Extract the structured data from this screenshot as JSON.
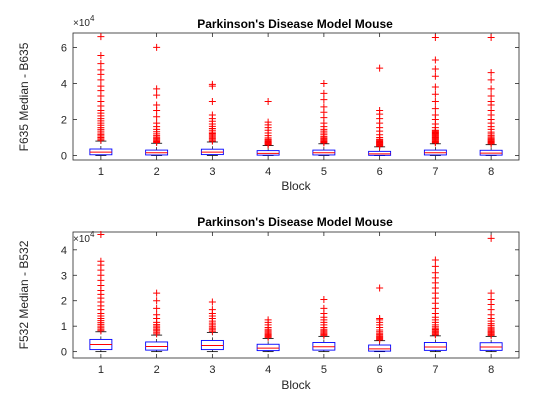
{
  "colors": {
    "box": "#0000ff",
    "median": "#ff0000",
    "outlier": "#ff0000",
    "whisker": "#000000",
    "axis": "#262626"
  },
  "chart_data": [
    {
      "type": "box",
      "title": "Parkinson's Disease Model Mouse",
      "xlabel": "Block",
      "ylabel": "F635 Median - B635",
      "exponent_label": "×10",
      "exponent_power": "4",
      "scale": 10000,
      "ylim": [
        -2500,
        68000
      ],
      "yticks": [
        0,
        20000,
        40000,
        60000
      ],
      "yticklabels": [
        "0",
        "2",
        "4",
        "6"
      ],
      "categories": [
        "1",
        "2",
        "3",
        "4",
        "5",
        "6",
        "7",
        "8"
      ],
      "boxes": [
        {
          "q1": 400,
          "median": 1900,
          "q3": 3600,
          "whisker_low": 0,
          "whisker_high": 8000,
          "outliers": [
            8500,
            9200,
            10000,
            10800,
            11600,
            12500,
            13500,
            14500,
            15500,
            16800,
            18000,
            19200,
            20500,
            22000,
            23500,
            25000,
            27500,
            30000,
            33000,
            36000,
            38500,
            42000,
            45000,
            47500,
            51000,
            55500,
            66000
          ]
        },
        {
          "q1": 300,
          "median": 1500,
          "q3": 3000,
          "whisker_low": 0,
          "whisker_high": 6800,
          "outliers": [
            7200,
            7800,
            8400,
            9000,
            9600,
            10200,
            11000,
            12000,
            13200,
            14500,
            16000,
            18000,
            21500,
            25000,
            28000,
            33500,
            37000,
            60000
          ]
        },
        {
          "q1": 500,
          "median": 1900,
          "q3": 3500,
          "whisker_low": 0,
          "whisker_high": 7500,
          "outliers": [
            8000,
            8700,
            9400,
            10100,
            10800,
            11500,
            12200,
            13000,
            14000,
            15000,
            16200,
            17500,
            19000,
            20500,
            22500,
            30000,
            38500,
            39500
          ]
        },
        {
          "q1": 200,
          "median": 1200,
          "q3": 2700,
          "whisker_low": 0,
          "whisker_high": 5500,
          "outliers": [
            5900,
            6300,
            6700,
            7100,
            7500,
            8000,
            8500,
            9000,
            9800,
            11000,
            12500,
            14000,
            15500,
            17000,
            18500,
            30000
          ]
        },
        {
          "q1": 300,
          "median": 1500,
          "q3": 3000,
          "whisker_low": 0,
          "whisker_high": 6500,
          "outliers": [
            7000,
            7500,
            8000,
            8600,
            9200,
            9800,
            10500,
            11500,
            12500,
            13500,
            14500,
            16000,
            18000,
            21000,
            24000,
            27000,
            31000,
            34500,
            40000
          ]
        },
        {
          "q1": 100,
          "median": 900,
          "q3": 2300,
          "whisker_low": 0,
          "whisker_high": 4800,
          "outliers": [
            5100,
            5500,
            5900,
            6300,
            6700,
            7100,
            7500,
            8000,
            8500,
            9000,
            10000,
            11500,
            13500,
            15500,
            18000,
            20500,
            23000,
            25000,
            48500
          ]
        },
        {
          "q1": 300,
          "median": 1500,
          "q3": 3000,
          "whisker_low": 0,
          "whisker_high": 6500,
          "outliers": [
            7000,
            7500,
            8000,
            8500,
            9000,
            9500,
            10000,
            10500,
            11000,
            11500,
            12000,
            12500,
            13000,
            13500,
            14000,
            15500,
            17500,
            20000,
            22500,
            26000,
            30000,
            34000,
            38000,
            44000,
            48000,
            53000,
            65500
          ]
        },
        {
          "q1": 200,
          "median": 1300,
          "q3": 2900,
          "whisker_low": 0,
          "whisker_high": 6000,
          "outliers": [
            6500,
            7000,
            7500,
            8000,
            8500,
            9000,
            9600,
            10300,
            11000,
            12000,
            13000,
            14500,
            16000,
            18000,
            20000,
            22500,
            25000,
            28000,
            30000,
            33000,
            37000,
            42000,
            46000,
            65500
          ]
        }
      ]
    },
    {
      "type": "box",
      "title": "Parkinson's Disease Model Mouse",
      "xlabel": "Block",
      "ylabel": "F532 Median - B532",
      "exponent_label": "×10",
      "exponent_power": "4",
      "scale": 10000,
      "ylim": [
        -2500,
        47000
      ],
      "yticks": [
        0,
        10000,
        20000,
        30000,
        40000
      ],
      "yticklabels": [
        "0",
        "1",
        "2",
        "3",
        "4"
      ],
      "categories": [
        "1",
        "2",
        "3",
        "4",
        "5",
        "6",
        "7",
        "8"
      ],
      "boxes": [
        {
          "q1": 800,
          "median": 2800,
          "q3": 4800,
          "whisker_low": 0,
          "whisker_high": 7800,
          "outliers": [
            8200,
            8800,
            9400,
            10000,
            10700,
            11400,
            12200,
            13000,
            14000,
            15000,
            16500,
            18000,
            19500,
            21000,
            22500,
            24000,
            26000,
            28000,
            30000,
            32000,
            34000,
            35500,
            46000
          ]
        },
        {
          "q1": 600,
          "median": 2000,
          "q3": 3800,
          "whisker_low": 0,
          "whisker_high": 6500,
          "outliers": [
            7000,
            7600,
            8200,
            8800,
            9400,
            10000,
            10600,
            11500,
            13000,
            14500,
            17000,
            20000,
            23000
          ]
        },
        {
          "q1": 800,
          "median": 2400,
          "q3": 4400,
          "whisker_low": 0,
          "whisker_high": 7500,
          "outliers": [
            8000,
            8600,
            9200,
            9800,
            10500,
            11200,
            12000,
            13000,
            14000,
            15000,
            16500,
            19500
          ]
        },
        {
          "q1": 400,
          "median": 1400,
          "q3": 2900,
          "whisker_low": 0,
          "whisker_high": 5200,
          "outliers": [
            5600,
            6000,
            6400,
            6800,
            7200,
            7700,
            8200,
            8800,
            9500,
            10500,
            11500,
            12500
          ]
        },
        {
          "q1": 600,
          "median": 1900,
          "q3": 3600,
          "whisker_low": 0,
          "whisker_high": 6000,
          "outliers": [
            6400,
            6800,
            7200,
            7700,
            8200,
            8800,
            9500,
            10500,
            11500,
            12500,
            13500,
            15000,
            17000,
            20500
          ]
        },
        {
          "q1": 200,
          "median": 1100,
          "q3": 2600,
          "whisker_low": 0,
          "whisker_high": 4300,
          "outliers": [
            4600,
            5000,
            5400,
            5800,
            6200,
            6700,
            7200,
            7800,
            8500,
            9500,
            10500,
            11500,
            12500,
            13000,
            25000
          ]
        },
        {
          "q1": 500,
          "median": 1800,
          "q3": 3600,
          "whisker_low": 0,
          "whisker_high": 6200,
          "outliers": [
            6600,
            7000,
            7400,
            7800,
            8200,
            8700,
            9200,
            9800,
            10500,
            11500,
            12500,
            13500,
            15000,
            17000,
            19000,
            21000,
            23000,
            25000,
            27000,
            29000,
            31000,
            33500,
            36000
          ]
        },
        {
          "q1": 500,
          "median": 1800,
          "q3": 3500,
          "whisker_low": 0,
          "whisker_high": 6000,
          "outliers": [
            6400,
            6800,
            7200,
            7600,
            8000,
            8500,
            9000,
            9600,
            10300,
            11000,
            12000,
            13000,
            14500,
            16500,
            18500,
            20500,
            23000,
            44500
          ]
        }
      ]
    }
  ]
}
